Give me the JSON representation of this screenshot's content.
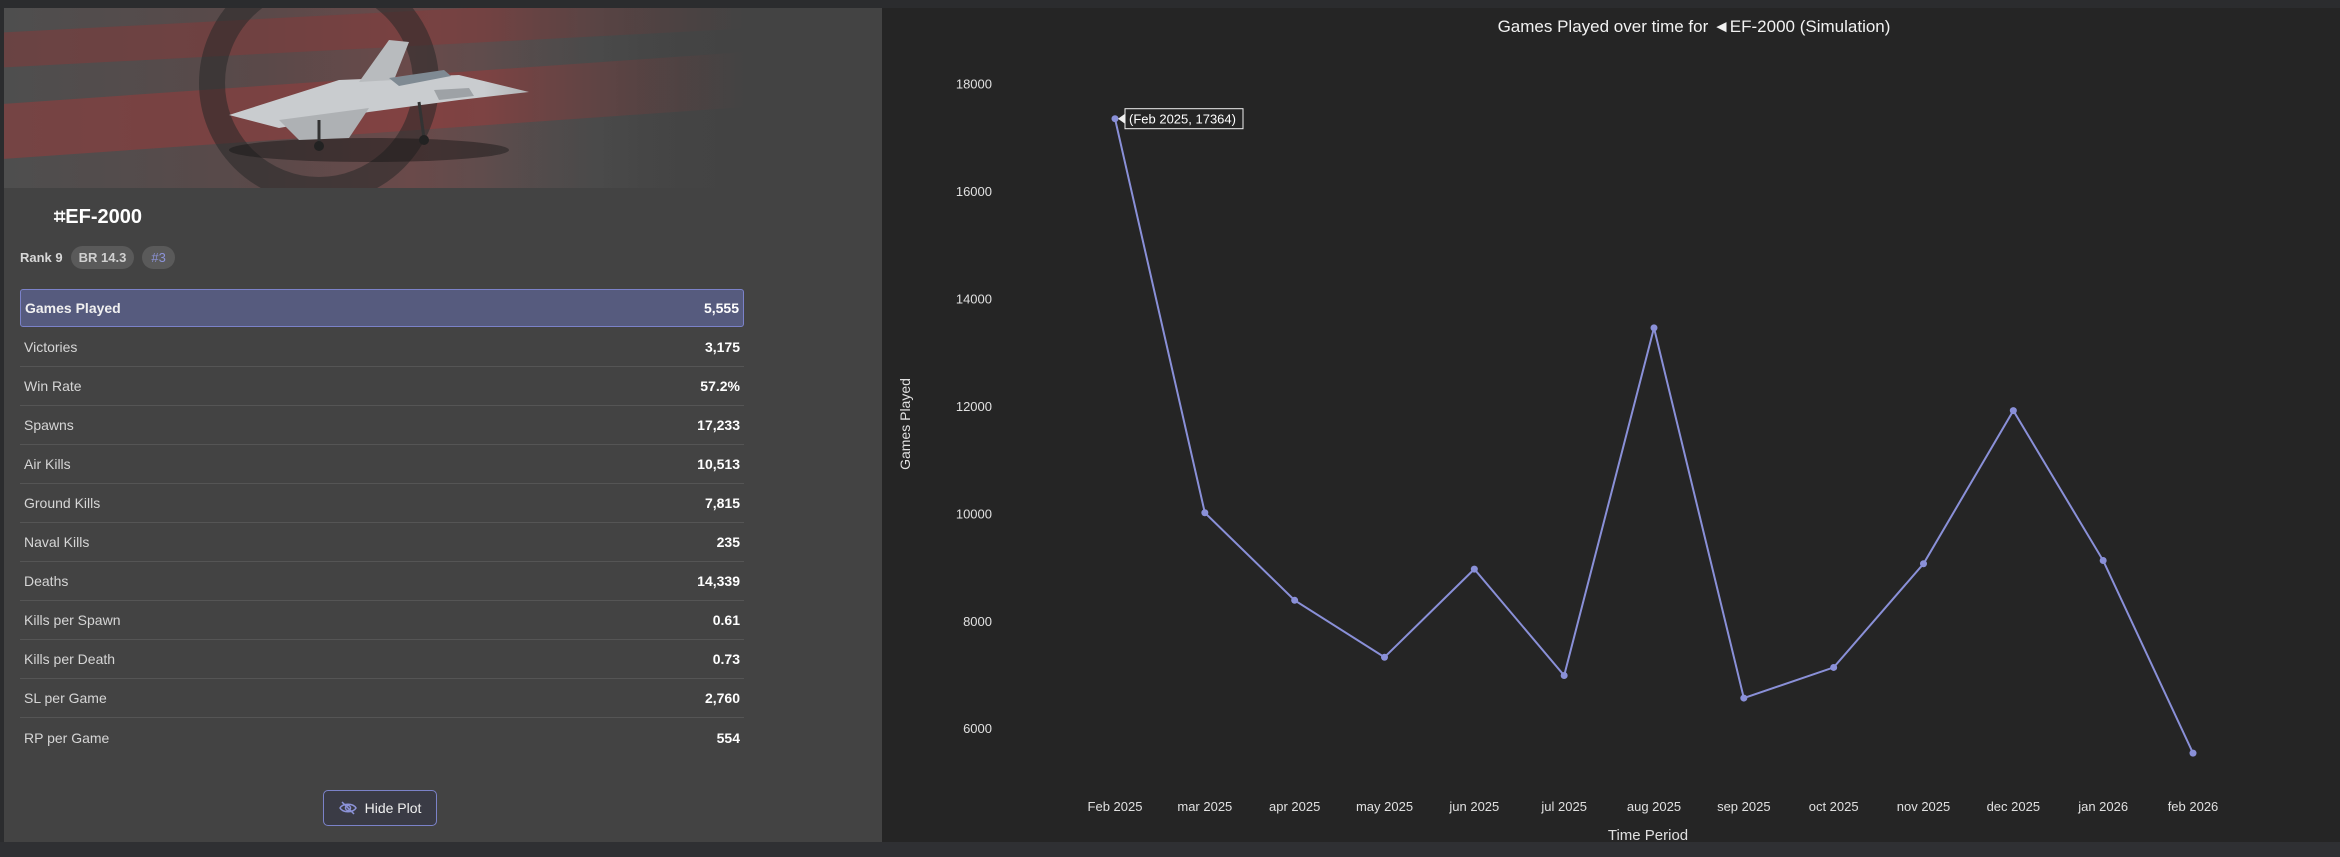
{
  "vehicle": {
    "name": "⌗EF-2000",
    "rank": "Rank 9",
    "br": "BR 14.3",
    "rank_pos": "#3"
  },
  "stats": [
    {
      "label": "Games Played",
      "value": "5,555",
      "highlighted": true
    },
    {
      "label": "Victories",
      "value": "3,175"
    },
    {
      "label": "Win Rate",
      "value": "57.2%"
    },
    {
      "label": "Spawns",
      "value": "17,233"
    },
    {
      "label": "Air Kills",
      "value": "10,513"
    },
    {
      "label": "Ground Kills",
      "value": "7,815"
    },
    {
      "label": "Naval Kills",
      "value": "235"
    },
    {
      "label": "Deaths",
      "value": "14,339"
    },
    {
      "label": "Kills per Spawn",
      "value": "0.61"
    },
    {
      "label": "Kills per Death",
      "value": "0.73"
    },
    {
      "label": "SL per Game",
      "value": "2,760"
    },
    {
      "label": "RP per Game",
      "value": "554"
    }
  ],
  "hide_button": {
    "label": "Hide Plot",
    "icon": "eye-slash-icon"
  },
  "colors": {
    "accent": "#7b82c9",
    "line": "#8a90d8"
  },
  "chart_data": {
    "type": "line",
    "title": "Games Played over time for ◄EF-2000 (Simulation)",
    "xlabel": "Time Period",
    "ylabel": "Games Played",
    "categories": [
      "Feb 2025",
      "mar 2025",
      "apr 2025",
      "may 2025",
      "jun 2025",
      "jul 2025",
      "aug 2025",
      "sep 2025",
      "oct 2025",
      "nov 2025",
      "dec 2025",
      "jan 2026",
      "feb 2026"
    ],
    "values": [
      17364,
      10030,
      8400,
      7340,
      8980,
      7000,
      13470,
      6580,
      7150,
      9080,
      11930,
      9140,
      5555
    ],
    "yticks": [
      6000,
      8000,
      10000,
      12000,
      14000,
      16000,
      18000
    ],
    "ylim": [
      4720,
      18680
    ],
    "tooltip": "(Feb 2025, 17364)",
    "grid": false
  }
}
